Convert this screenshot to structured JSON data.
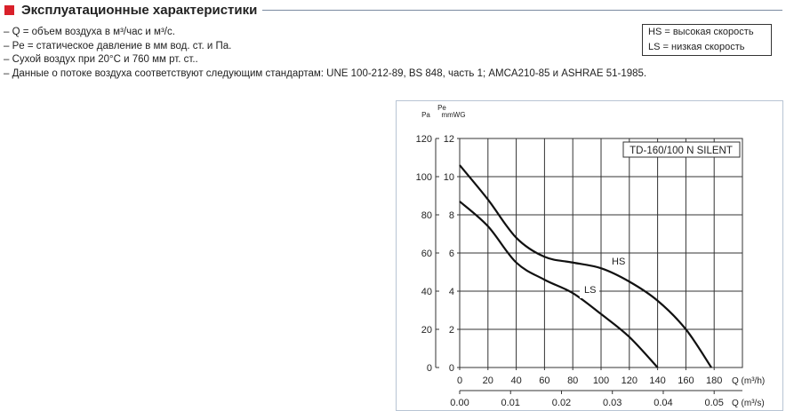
{
  "header": {
    "title": "Эксплуатационные характеристики",
    "accent": "#d9202a"
  },
  "notes": [
    "– Q = объем воздуха в м³/час и м³/с.",
    "– Pe = статическое давление в мм вод. ст. и Па.",
    "– Сухой воздух при 20°C и 760 мм рт. ст..",
    "– Данные о потоке воздуха соответствуют следующим стандартам: UNE 100-212-89, BS 848, часть 1; AMCA210-85 и ASHRAE 51-1985."
  ],
  "legend": [
    "HS  = высокая скорость",
    "LS  = низкая скорость"
  ],
  "chart_data": {
    "type": "line",
    "title": "TD-160/100 N SILENT",
    "ylabel": "Pe",
    "y_units": [
      "Pa",
      "mmWG"
    ],
    "y_ticks_mmWG": [
      0,
      2,
      4,
      6,
      8,
      10,
      12
    ],
    "y_ticks_Pa": [
      0,
      20,
      40,
      60,
      80,
      100,
      120
    ],
    "ylim": [
      0,
      12
    ],
    "x_ticks_m3h": [
      0,
      20,
      40,
      60,
      80,
      100,
      120,
      140,
      160,
      180
    ],
    "xlabel": "Q (m³/h)",
    "xlim": [
      0,
      200
    ],
    "x2_ticks_m3s": [
      "0.00",
      "0.01",
      "0.02",
      "0.03",
      "0.04",
      "0.05"
    ],
    "x2label": "Q (m³/s)",
    "grid": true,
    "series": [
      {
        "name": "HS",
        "x": [
          0,
          20,
          40,
          60,
          80,
          100,
          120,
          140,
          160,
          178
        ],
        "y": [
          10.6,
          8.8,
          6.8,
          5.8,
          5.5,
          5.2,
          4.5,
          3.5,
          2.0,
          0
        ]
      },
      {
        "name": "LS",
        "x": [
          0,
          20,
          40,
          60,
          80,
          100,
          120,
          140
        ],
        "y": [
          8.7,
          7.4,
          5.5,
          4.6,
          3.9,
          2.8,
          1.6,
          0
        ]
      }
    ]
  }
}
